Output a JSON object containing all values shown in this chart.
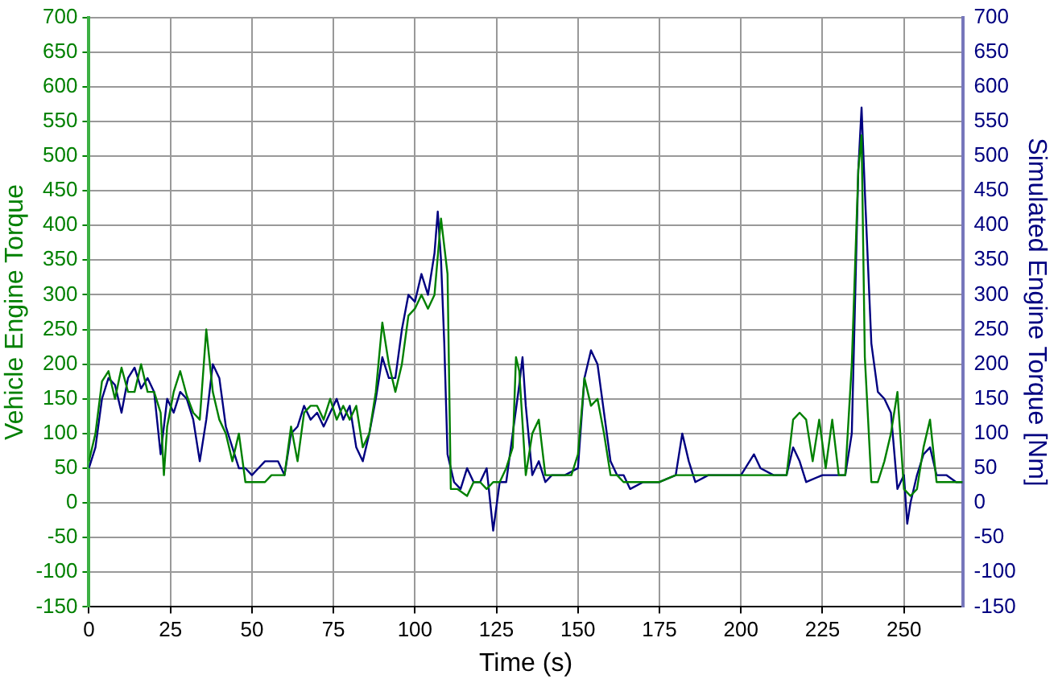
{
  "chart_data": {
    "type": "line",
    "xlabel": "Time (s)",
    "ylabel": "Vehicle Engine Torque",
    "y2label": "Simulated Engine Torque [Nm]",
    "xlim": [
      0,
      268
    ],
    "xticks": [
      0,
      25,
      50,
      75,
      100,
      125,
      150,
      175,
      200,
      225,
      250
    ],
    "ylim": [
      -150,
      700
    ],
    "yticks": [
      -150,
      -100,
      -50,
      0,
      50,
      100,
      150,
      200,
      250,
      300,
      350,
      400,
      450,
      500,
      550,
      600,
      650,
      700
    ],
    "y2lim": [
      -150,
      700
    ],
    "y2ticks": [
      -150,
      -100,
      -50,
      0,
      50,
      100,
      150,
      200,
      250,
      300,
      350,
      400,
      450,
      500,
      550,
      600,
      650,
      700
    ],
    "grid": true,
    "legend": false,
    "marker": "none",
    "line_style": "solid",
    "series": [
      {
        "color": "#008000",
        "axis": "y",
        "x": [
          0,
          2,
          4,
          6,
          8,
          10,
          12,
          14,
          16,
          18,
          20,
          22,
          23,
          24,
          26,
          28,
          30,
          32,
          34,
          36,
          38,
          40,
          42,
          44,
          46,
          48,
          50,
          52,
          54,
          56,
          58,
          60,
          62,
          64,
          66,
          68,
          70,
          72,
          74,
          76,
          78,
          80,
          82,
          84,
          86,
          88,
          90,
          92,
          94,
          96,
          98,
          100,
          102,
          104,
          106,
          108,
          110,
          111,
          113,
          116,
          118,
          120,
          122,
          124,
          126,
          128,
          130,
          131,
          132,
          134,
          136,
          138,
          140,
          142,
          144,
          146,
          148,
          150,
          152,
          154,
          156,
          158,
          160,
          162,
          164,
          166,
          168,
          170,
          175,
          180,
          185,
          190,
          195,
          200,
          205,
          210,
          214,
          216,
          218,
          220,
          222,
          224,
          226,
          228,
          230,
          232,
          234,
          236,
          237,
          238,
          240,
          242,
          244,
          246,
          248,
          250,
          252,
          254,
          256,
          258,
          260,
          262,
          264,
          268
        ],
        "values": [
          60,
          100,
          175,
          190,
          150,
          195,
          160,
          160,
          200,
          160,
          160,
          130,
          40,
          110,
          160,
          190,
          155,
          130,
          120,
          250,
          160,
          120,
          100,
          60,
          100,
          30,
          30,
          30,
          30,
          40,
          40,
          40,
          110,
          60,
          130,
          140,
          140,
          120,
          150,
          120,
          140,
          120,
          140,
          80,
          100,
          160,
          260,
          200,
          160,
          200,
          270,
          280,
          300,
          280,
          300,
          410,
          330,
          20,
          20,
          10,
          30,
          30,
          20,
          30,
          30,
          50,
          80,
          210,
          190,
          40,
          100,
          120,
          40,
          40,
          40,
          40,
          40,
          70,
          180,
          140,
          150,
          100,
          40,
          40,
          30,
          30,
          30,
          30,
          30,
          40,
          40,
          40,
          40,
          40,
          40,
          40,
          40,
          120,
          130,
          120,
          60,
          120,
          50,
          120,
          40,
          40,
          200,
          480,
          530,
          210,
          30,
          30,
          60,
          100,
          160,
          20,
          10,
          20,
          80,
          120,
          30,
          30,
          30,
          30
        ]
      },
      {
        "color": "#000080",
        "axis": "y2",
        "x": [
          0,
          2,
          4,
          6,
          8,
          10,
          12,
          14,
          16,
          18,
          20,
          22,
          24,
          26,
          28,
          30,
          32,
          34,
          36,
          38,
          40,
          42,
          44,
          46,
          48,
          50,
          52,
          54,
          56,
          58,
          60,
          62,
          64,
          66,
          68,
          70,
          72,
          74,
          76,
          78,
          80,
          82,
          84,
          86,
          88,
          90,
          92,
          94,
          96,
          98,
          100,
          102,
          104,
          106,
          107,
          108,
          109,
          110,
          112,
          114,
          116,
          118,
          120,
          122,
          124,
          126,
          128,
          130,
          132,
          133,
          134,
          136,
          138,
          140,
          142,
          144,
          146,
          150,
          152,
          154,
          156,
          158,
          160,
          162,
          164,
          166,
          170,
          175,
          180,
          182,
          184,
          186,
          190,
          195,
          200,
          204,
          206,
          210,
          214,
          216,
          218,
          220,
          225,
          230,
          232,
          234,
          236,
          237,
          238,
          240,
          242,
          244,
          246,
          248,
          250,
          251,
          252,
          254,
          256,
          258,
          260,
          263,
          266,
          268
        ],
        "values": [
          50,
          80,
          150,
          180,
          170,
          130,
          180,
          195,
          165,
          180,
          160,
          70,
          150,
          130,
          160,
          150,
          120,
          60,
          120,
          200,
          180,
          110,
          80,
          50,
          50,
          40,
          50,
          60,
          60,
          60,
          40,
          100,
          110,
          140,
          120,
          130,
          110,
          130,
          150,
          120,
          140,
          80,
          60,
          100,
          150,
          210,
          180,
          180,
          250,
          300,
          290,
          330,
          300,
          360,
          420,
          350,
          230,
          70,
          30,
          20,
          50,
          30,
          30,
          50,
          -40,
          30,
          30,
          100,
          170,
          210,
          140,
          40,
          60,
          30,
          40,
          40,
          40,
          50,
          180,
          220,
          200,
          130,
          60,
          40,
          40,
          20,
          30,
          30,
          40,
          100,
          60,
          30,
          40,
          40,
          40,
          70,
          50,
          40,
          40,
          80,
          60,
          30,
          40,
          40,
          40,
          100,
          480,
          570,
          450,
          230,
          160,
          150,
          130,
          20,
          40,
          -30,
          0,
          40,
          70,
          80,
          40,
          40,
          30,
          30
        ]
      }
    ]
  }
}
